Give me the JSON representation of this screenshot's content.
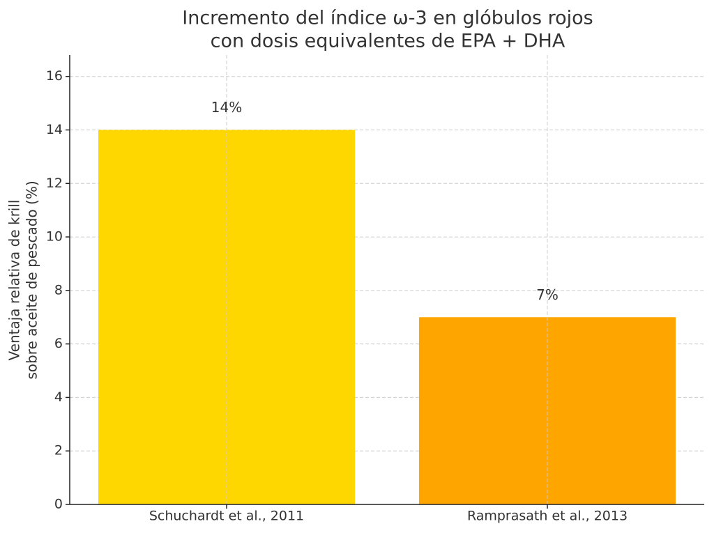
{
  "chart_data": {
    "type": "bar",
    "title": [
      "Incremento del índice ω-3 en glóbulos rojos",
      "con dosis equivalentes de EPA + DHA"
    ],
    "ylabel": [
      "Ventaja relativa de krill",
      "sobre aceite de pescado (%)"
    ],
    "categories": [
      "Schuchardt et al., 2011",
      "Ramprasath et al., 2013"
    ],
    "values": [
      14,
      7
    ],
    "value_labels": [
      "14%",
      "7%"
    ],
    "colors": [
      "#ffd700",
      "#ffa500"
    ],
    "ylim": [
      0,
      16.8
    ],
    "yticks": [
      0,
      2,
      4,
      6,
      8,
      10,
      12,
      14,
      16
    ],
    "grid": true
  }
}
